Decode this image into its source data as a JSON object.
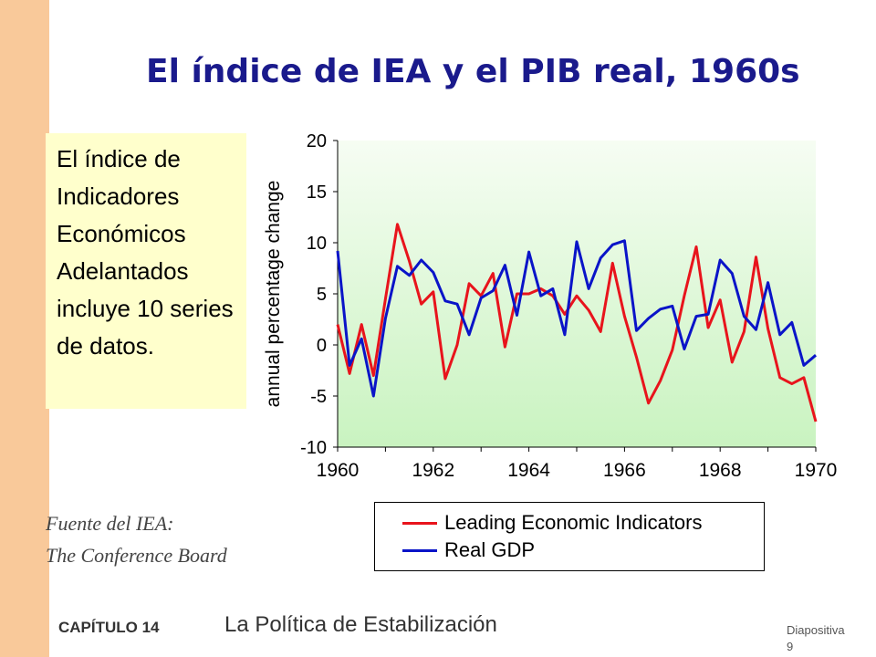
{
  "slide": {
    "title": "El índice de IEA y el PIB real, 1960s",
    "note": "El índice de Indicadores Económicos Adelantados incluye 10 series de datos.",
    "source_line1": "Fuente del IEA:",
    "source_line2": "The Conference Board",
    "chapter": "CAPÍTULO 14",
    "topic": "La Política de Estabilización",
    "slide_word": "Diapositiva",
    "slide_number": "9"
  },
  "colors": {
    "left_bar": "#f9c99a",
    "title": "#1a1a8c",
    "note_bg": "#ffffcc",
    "lei": "#e8141c",
    "gdp": "#0a14c8"
  },
  "chart_data": {
    "type": "line",
    "ylabel": "annual percentage change",
    "xlabel": "",
    "xlim": [
      1960,
      1970
    ],
    "ylim": [
      -10,
      20
    ],
    "xticks": [
      "1960",
      "1962",
      "1964",
      "1966",
      "1968",
      "1970"
    ],
    "yticks": [
      "-10",
      "-5",
      "0",
      "5",
      "10",
      "15",
      "20"
    ],
    "grid": false,
    "background": "gradient white-to-light-green",
    "legend_position": "below",
    "series": [
      {
        "name": "Leading Economic Indicators",
        "color": "#e8141c",
        "x": [
          1960.0,
          1960.25,
          1960.5,
          1960.75,
          1961.0,
          1961.25,
          1961.5,
          1961.75,
          1962.0,
          1962.25,
          1962.5,
          1962.75,
          1963.0,
          1963.25,
          1963.5,
          1963.75,
          1964.0,
          1964.25,
          1964.5,
          1964.75,
          1965.0,
          1965.25,
          1965.5,
          1965.75,
          1966.0,
          1966.25,
          1966.5,
          1966.75,
          1967.0,
          1967.25,
          1967.5,
          1967.75,
          1968.0,
          1968.25,
          1968.5,
          1968.75,
          1969.0,
          1969.25,
          1969.5,
          1969.75,
          1970.0
        ],
        "y": [
          2.0,
          -2.8,
          2.0,
          -3.0,
          4.5,
          11.8,
          8.2,
          4.0,
          5.2,
          -3.3,
          0.0,
          6.0,
          4.8,
          7.0,
          -0.2,
          5.0,
          5.0,
          5.5,
          4.8,
          3.0,
          4.8,
          3.4,
          1.3,
          8.0,
          2.8,
          -1.2,
          -5.7,
          -3.5,
          -0.5,
          4.8,
          9.6,
          1.7,
          4.4,
          -1.7,
          1.3,
          8.6,
          1.6,
          -3.2,
          -3.8,
          -3.2,
          -7.5
        ]
      },
      {
        "name": "Real GDP",
        "color": "#0a14c8",
        "x": [
          1960.0,
          1960.25,
          1960.5,
          1960.75,
          1961.0,
          1961.25,
          1961.5,
          1961.75,
          1962.0,
          1962.25,
          1962.5,
          1962.75,
          1963.0,
          1963.25,
          1963.5,
          1963.75,
          1964.0,
          1964.25,
          1964.5,
          1964.75,
          1965.0,
          1965.25,
          1965.5,
          1965.75,
          1966.0,
          1966.25,
          1966.5,
          1966.75,
          1967.0,
          1967.25,
          1967.5,
          1967.75,
          1968.0,
          1968.25,
          1968.5,
          1968.75,
          1969.0,
          1969.25,
          1969.5,
          1969.75,
          1970.0
        ],
        "y": [
          9.2,
          -2.0,
          0.6,
          -5.0,
          2.6,
          7.7,
          6.8,
          8.3,
          7.1,
          4.3,
          4.0,
          1.0,
          4.6,
          5.3,
          7.8,
          2.9,
          9.1,
          4.8,
          5.5,
          1.0,
          10.1,
          5.5,
          8.5,
          9.8,
          10.2,
          1.4,
          2.6,
          3.5,
          3.8,
          -0.4,
          2.8,
          3.0,
          8.3,
          7.0,
          2.8,
          1.5,
          6.1,
          1.0,
          2.2,
          -2.0,
          -1.0
        ]
      }
    ]
  }
}
